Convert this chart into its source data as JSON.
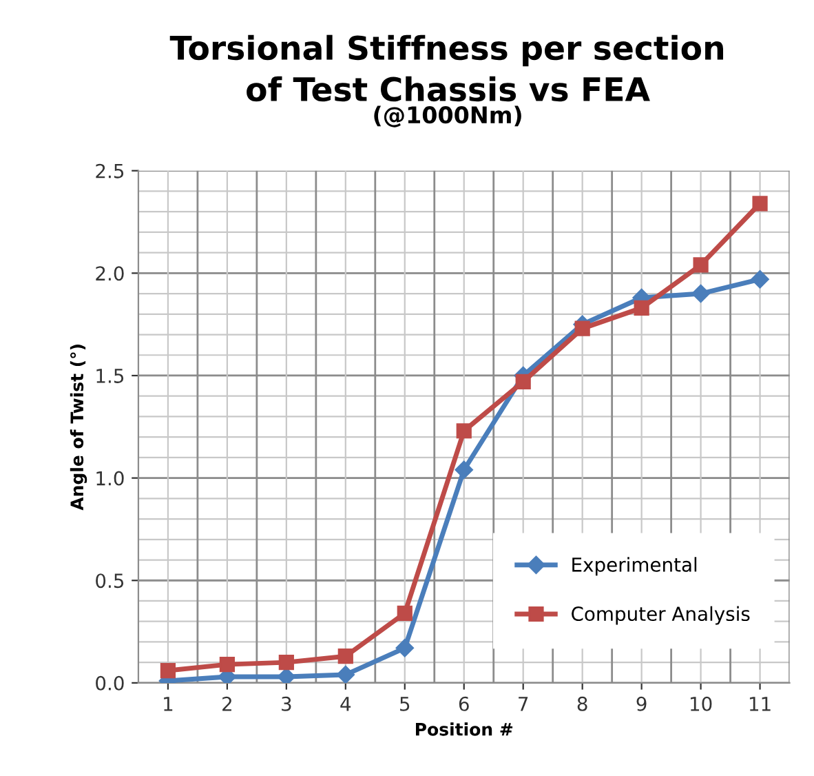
{
  "chart_data": {
    "type": "line",
    "title": "Torsional Stiffness per section\nof Test Chassis vs FEA",
    "subtitle": "(@1000Nm)",
    "xlabel": "Position #",
    "ylabel": "Angle of Twist (°)",
    "categories": [
      "1",
      "2",
      "3",
      "4",
      "5",
      "6",
      "7",
      "8",
      "9",
      "10",
      "11"
    ],
    "series": [
      {
        "name": "Experimental",
        "color": "#4a7ebb",
        "marker": "diamond",
        "values": [
          0.01,
          0.03,
          0.03,
          0.04,
          0.17,
          1.04,
          1.5,
          1.75,
          1.88,
          1.9,
          1.97
        ]
      },
      {
        "name": "Computer Analysis",
        "color": "#be4b48",
        "marker": "square",
        "values": [
          0.06,
          0.09,
          0.1,
          0.13,
          0.34,
          1.23,
          1.47,
          1.73,
          1.83,
          2.04,
          2.34
        ]
      }
    ],
    "ylim": [
      0,
      2.5
    ],
    "yticks": [
      {
        "value": 0,
        "label": "0.0"
      },
      0.5,
      {
        "value": 1,
        "label": "1.0"
      },
      1.5,
      {
        "value": 2,
        "label": "2.0"
      },
      2.5
    ],
    "grid": true,
    "legend": "lower right",
    "line_style": "solid"
  }
}
